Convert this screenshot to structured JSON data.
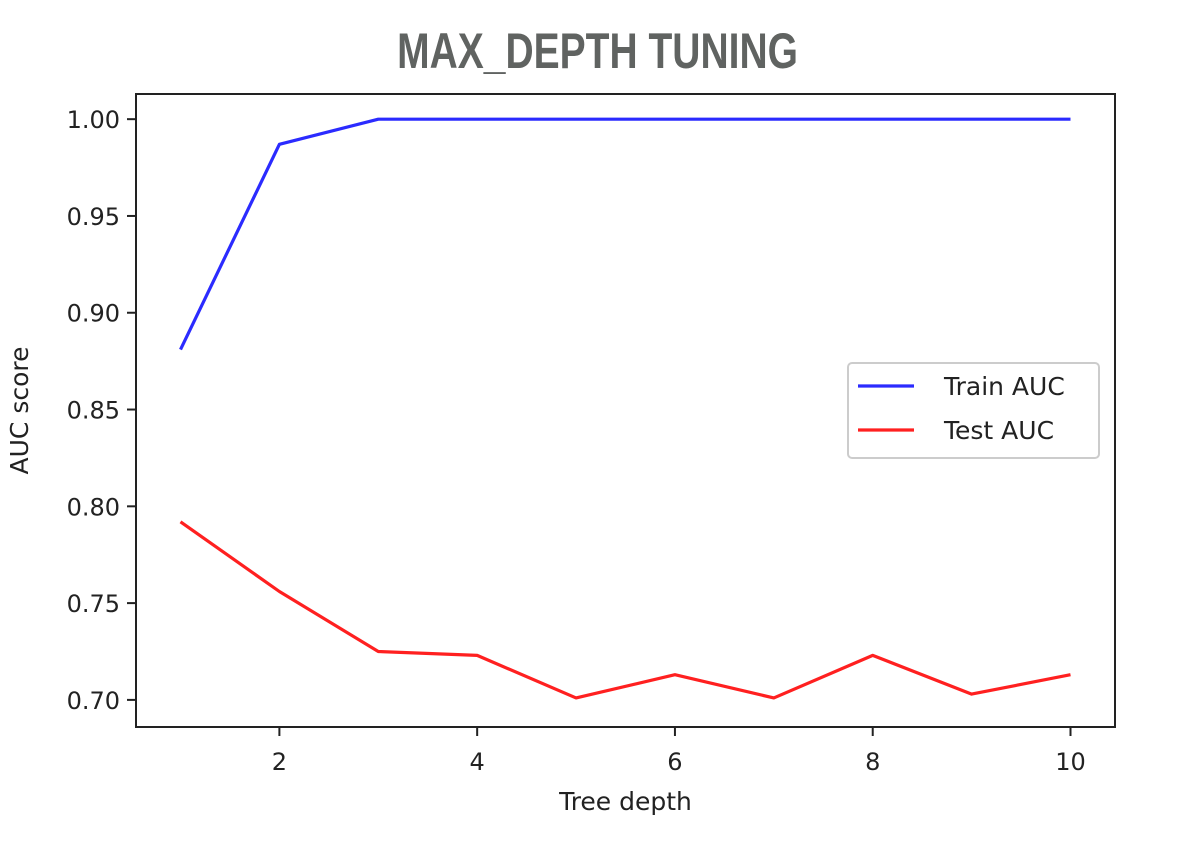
{
  "chart_data": {
    "type": "line",
    "title": "MAX_DEPTH TUNING",
    "xlabel": "Tree depth",
    "ylabel": "AUC score",
    "x": [
      1,
      2,
      3,
      4,
      5,
      6,
      7,
      8,
      9,
      10
    ],
    "series": [
      {
        "name": "Train AUC",
        "color": "#2b2bff",
        "values": [
          0.881,
          0.987,
          1.0,
          1.0,
          1.0,
          1.0,
          1.0,
          1.0,
          1.0,
          1.0
        ]
      },
      {
        "name": "Test AUC",
        "color": "#ff2020",
        "values": [
          0.792,
          0.756,
          0.725,
          0.723,
          0.701,
          0.713,
          0.701,
          0.723,
          0.703,
          0.713
        ]
      }
    ],
    "xlim": [
      0.55,
      10.45
    ],
    "ylim": [
      0.686,
      1.013
    ],
    "xticks": [
      2,
      4,
      6,
      8,
      10
    ],
    "xtick_labels": [
      "2",
      "4",
      "6",
      "8",
      "10"
    ],
    "yticks": [
      0.7,
      0.75,
      0.8,
      0.85,
      0.9,
      0.95,
      1.0
    ],
    "ytick_labels": [
      "0.70",
      "0.75",
      "0.80",
      "0.85",
      "0.90",
      "0.95",
      "1.00"
    ],
    "grid": false,
    "legend_position": "center-right"
  }
}
